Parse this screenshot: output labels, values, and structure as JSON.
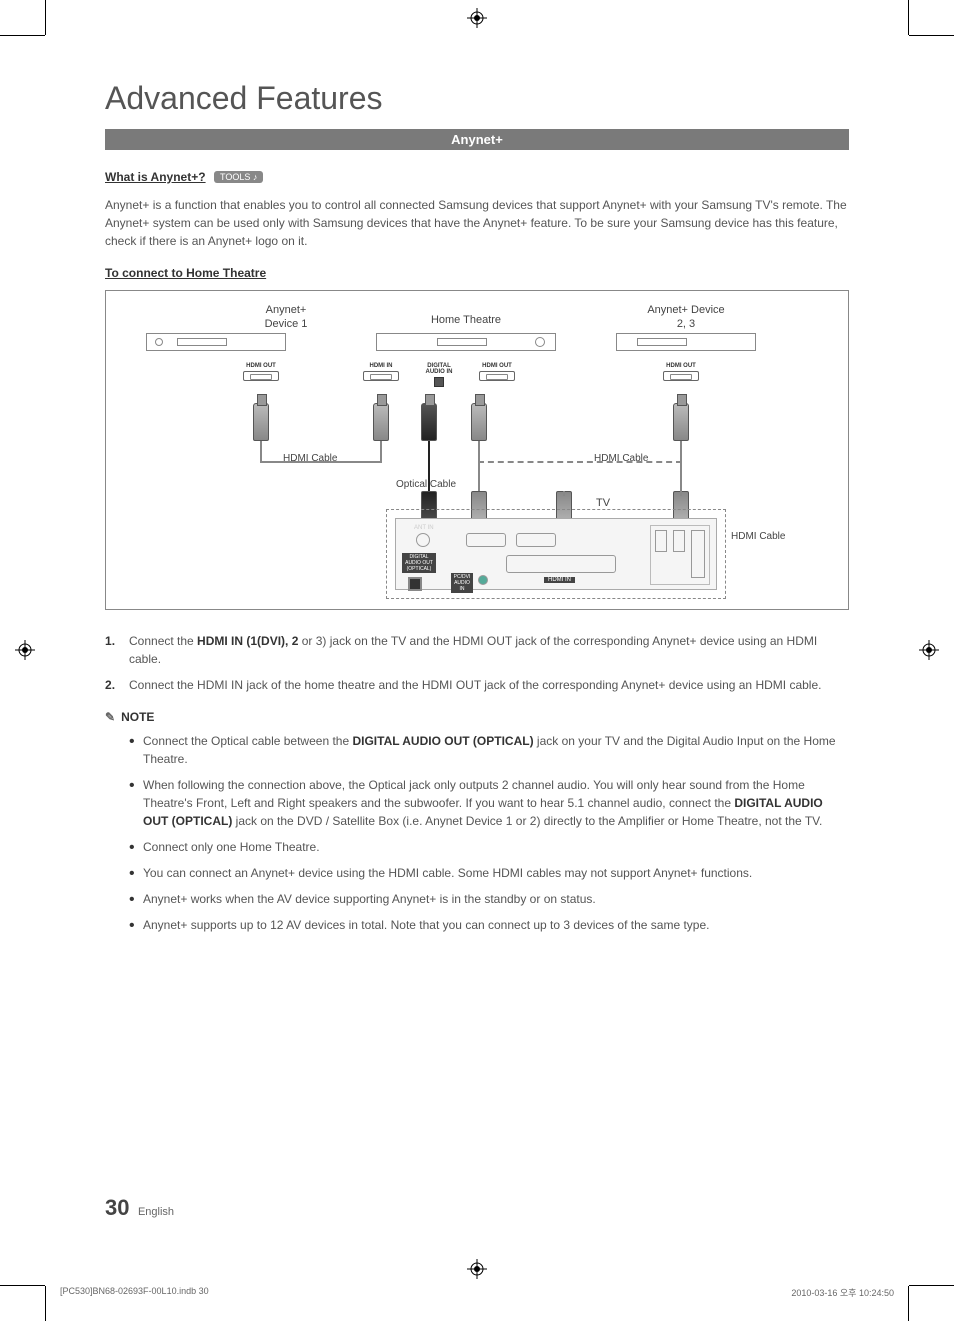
{
  "page_title": "Advanced Features",
  "section_bar": "Anynet+",
  "heading_what": "What is Anynet+?",
  "tools_label": "TOOLS",
  "intro_text": "Anynet+ is a function that enables you to control all connected Samsung devices that support Anynet+ with your Samsung TV's remote. The Anynet+ system can be used only with Samsung devices that have the Anynet+ feature. To be sure your Samsung device has this feature, check if there is an Anynet+ logo on it.",
  "heading_connect": "To connect to Home Theatre",
  "diagram": {
    "device1_label": "Anynet+\nDevice 1",
    "home_theatre_label": "Home Theatre",
    "device23_label": "Anynet+ Device\n2, 3",
    "tv_label": "TV",
    "hdmi_out": "HDMI OUT",
    "hdmi_in": "HDMI IN",
    "digital_audio_in": "DIGITAL AUDIO IN",
    "hdmi_cable": "HDMI Cable",
    "optical_cable": "Optical Cable",
    "box_border_color": "#888888",
    "background": "#ffffff"
  },
  "steps": [
    {
      "prefix": "Connect the ",
      "bold": "HDMI IN (1(DVI), 2",
      "rest": " or 3) jack on the TV and the HDMI OUT jack of the corresponding Anynet+ device using an HDMI cable."
    },
    {
      "prefix": "Connect the HDMI IN jack of the home theatre and the HDMI OUT jack of the corresponding Anynet+ device using an HDMI cable.",
      "bold": "",
      "rest": ""
    }
  ],
  "note_label": "NOTE",
  "notes": [
    {
      "pre": "Connect the Optical cable between the ",
      "bold": "DIGITAL AUDIO OUT (OPTICAL)",
      "post": " jack on your TV and the Digital Audio Input on the Home Theatre."
    },
    {
      "pre": "When following the connection above, the Optical jack only outputs 2 channel audio. You will only hear sound from the Home Theatre's Front, Left and Right speakers and the subwoofer. If you want to hear 5.1 channel audio, connect the ",
      "bold": "DIGITAL AUDIO OUT (OPTICAL)",
      "post": " jack on the DVD / Satellite Box (i.e. Anynet Device 1 or 2) directly to the Amplifier or Home Theatre, not the TV."
    },
    {
      "pre": "Connect only one Home Theatre.",
      "bold": "",
      "post": ""
    },
    {
      "pre": "You can connect an Anynet+ device using the HDMI cable. Some HDMI cables may not support Anynet+ functions.",
      "bold": "",
      "post": ""
    },
    {
      "pre": "Anynet+ works when the AV device supporting Anynet+ is in the standby or on status.",
      "bold": "",
      "post": ""
    },
    {
      "pre": "Anynet+ supports up to 12 AV devices in total. Note that you can connect up to 3 devices of the same type.",
      "bold": "",
      "post": ""
    }
  ],
  "page_number": "30",
  "page_language": "English",
  "footer_file": "[PC530]BN68-02693F-00L10.indb   30",
  "footer_date": "2010-03-16   오후 10:24:50",
  "colors": {
    "title": "#555555",
    "bar_bg": "#7a7a7a",
    "bar_text": "#ffffff",
    "body_text": "#555555",
    "strong_text": "#333333"
  }
}
